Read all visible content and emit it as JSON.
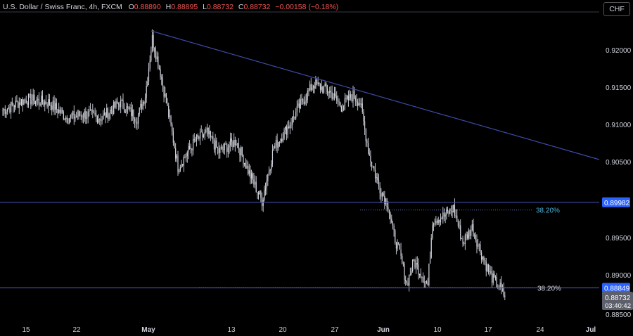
{
  "header": {
    "title": "U.S. Dollar / Swiss Franc, 4h, FXCM",
    "open_label": "O",
    "open": "0.88890",
    "high_label": "H",
    "high": "0.88895",
    "low_label": "L",
    "low": "0.88732",
    "close_label": "C",
    "close": "0.88732",
    "change": "−0.00158 (−0.18%)"
  },
  "currency_button": "CHF",
  "colors": {
    "up": "#d1d4dc",
    "down": "#d1d4dc",
    "trendline": "#3f4aa8",
    "level": "#3f4aa8",
    "fib_label": "#4fb0d6",
    "price_tag": "#2962ff"
  },
  "chart_data": {
    "type": "candlestick",
    "title": "U.S. Dollar / Swiss Franc, 4h, FXCM",
    "x_ticks": [
      "15",
      "22",
      "May",
      "13",
      "20",
      "27",
      "Jun",
      "10",
      "17",
      "24",
      "Jul"
    ],
    "y_ticks": [
      "0.92000",
      "0.91500",
      "0.91000",
      "0.90500",
      "0.89500",
      "0.89000",
      "0.88500"
    ],
    "ylim": [
      0.8846,
      0.924
    ],
    "bars": 340,
    "trendline": [
      {
        "date": "Apr 30",
        "price": 0.9225
      },
      {
        "date": "Jul 1",
        "price": 0.9055
      }
    ],
    "levels": [
      {
        "price": 0.89982,
        "tag": "0.89982",
        "label": ""
      },
      {
        "price": 0.88849,
        "tag": "0.88849",
        "label": "38.20%"
      }
    ],
    "fib_lines": [
      {
        "price": 0.8988,
        "label": "38.20%"
      }
    ],
    "last_price": {
      "value": "0.88732",
      "countdown": "03:40:42"
    },
    "keypoints": [
      [
        0,
        0.912
      ],
      [
        20,
        0.9135
      ],
      [
        40,
        0.913
      ],
      [
        55,
        0.911
      ],
      [
        70,
        0.9115
      ],
      [
        85,
        0.911
      ],
      [
        100,
        0.913
      ],
      [
        115,
        0.911
      ],
      [
        122,
        0.914
      ],
      [
        128,
        0.9215
      ],
      [
        135,
        0.917
      ],
      [
        145,
        0.909
      ],
      [
        150,
        0.9045
      ],
      [
        165,
        0.908
      ],
      [
        175,
        0.909
      ],
      [
        185,
        0.9065
      ],
      [
        200,
        0.908
      ],
      [
        210,
        0.904
      ],
      [
        222,
        0.9
      ],
      [
        232,
        0.907
      ],
      [
        245,
        0.91
      ],
      [
        256,
        0.913
      ],
      [
        266,
        0.9155
      ],
      [
        280,
        0.9145
      ],
      [
        290,
        0.9125
      ],
      [
        300,
        0.914
      ],
      [
        306,
        0.913
      ],
      [
        314,
        0.906
      ],
      [
        322,
        0.902
      ],
      [
        330,
        0.8995
      ],
      [
        334,
        0.896
      ],
      [
        340,
        0.893
      ],
      [
        346,
        0.889
      ],
      [
        352,
        0.892
      ],
      [
        358,
        0.8905
      ],
      [
        364,
        0.8888
      ],
      [
        368,
        0.8975
      ],
      [
        378,
        0.898
      ],
      [
        386,
        0.899
      ],
      [
        394,
        0.8945
      ],
      [
        402,
        0.8965
      ],
      [
        410,
        0.893
      ],
      [
        418,
        0.89
      ],
      [
        426,
        0.8885
      ],
      [
        430,
        0.8873
      ]
    ]
  }
}
